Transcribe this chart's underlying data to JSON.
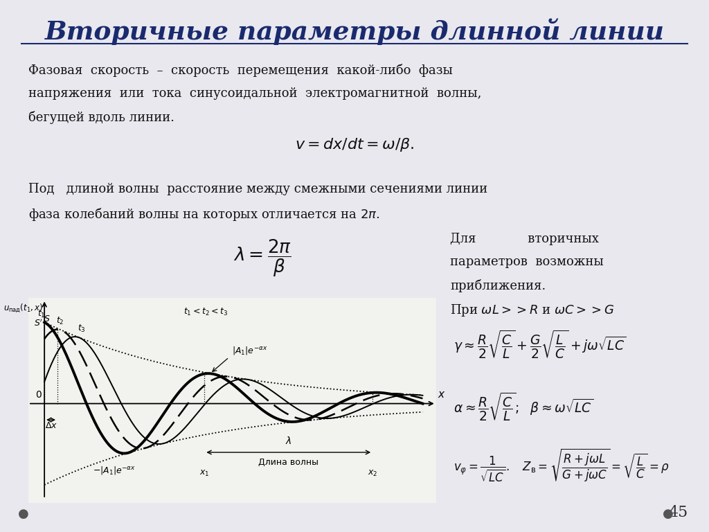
{
  "title": "Вторичные параметры длинной линии",
  "bg_color": "#e8e8ee",
  "title_color": "#1a2a6e",
  "text_color": "#111111",
  "page_number": "45",
  "para1": [
    "Фазовая  скорость  –  скорость  перемещения  какой-либо  фазы",
    "напряжения  или  тока  синусоидальной  электромагнитной  волны,",
    "бегущей вдоль линии."
  ],
  "formula1": "$v = dx/dt = \\omega/\\beta.$",
  "para2": [
    "Под   длиной волны  расстояние между смежными сечениями линии",
    "фаза колебаний волны на которых отличается на $2\\pi$."
  ],
  "right_text": [
    "Для             вторичных",
    "параметров  возможны",
    "приближения.",
    "При $\\omega L >> R$ и $\\omega C >> G$"
  ]
}
